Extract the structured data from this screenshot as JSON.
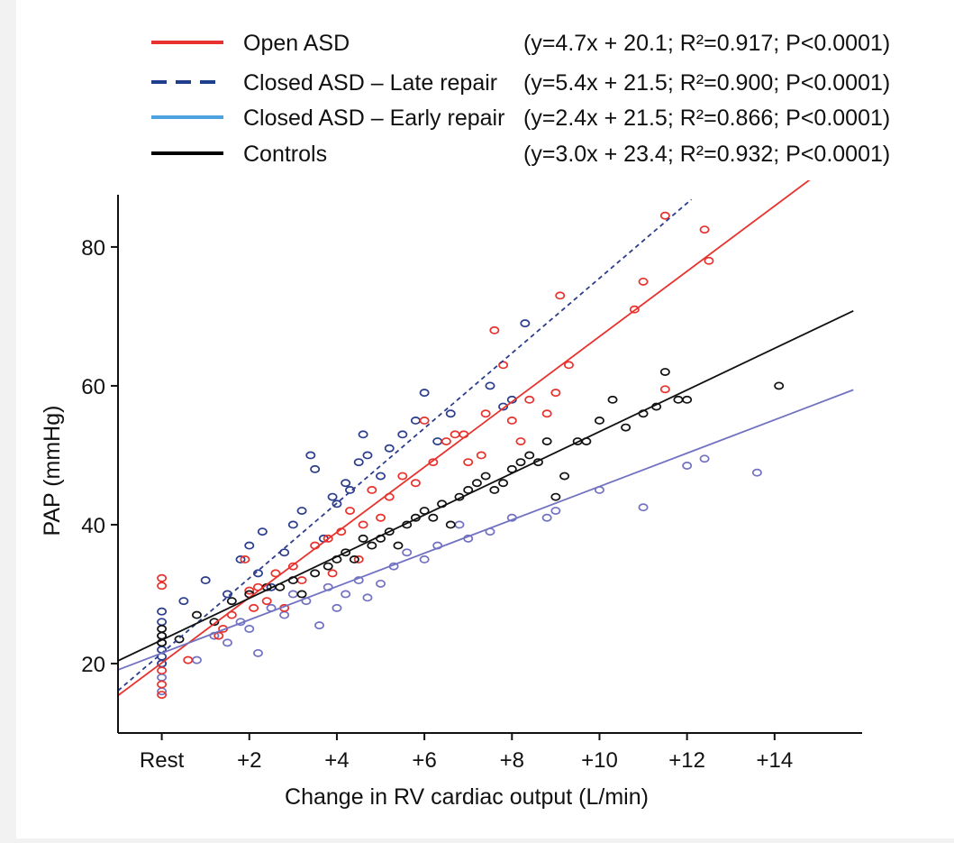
{
  "chart_data": {
    "type": "scatter",
    "legend_placement": "top",
    "xlabel": "Change in RV cardiac output (L/min)",
    "ylabel": "PAP (mmHg)",
    "xlim": [
      -1,
      16
    ],
    "ylim": [
      10,
      87
    ],
    "x_ticks": [
      {
        "value": 0,
        "label": "Rest"
      },
      {
        "value": 2,
        "label": "+2"
      },
      {
        "value": 4,
        "label": "+4"
      },
      {
        "value": 6,
        "label": "+6"
      },
      {
        "value": 8,
        "label": "+8"
      },
      {
        "value": 10,
        "label": "+10"
      },
      {
        "value": 12,
        "label": "+12"
      },
      {
        "value": 14,
        "label": "+14"
      }
    ],
    "y_ticks": [
      {
        "value": 20,
        "label": "20"
      },
      {
        "value": 40,
        "label": "40"
      },
      {
        "value": 60,
        "label": "60"
      },
      {
        "value": 80,
        "label": "80"
      }
    ],
    "grid": false,
    "series": [
      {
        "name": "Open ASD",
        "equation": "(y=4.7x + 20.1; R²=0.917; P<0.0001)",
        "color": "#e8322d",
        "line_style": "solid",
        "slope": 4.7,
        "intercept": 20.1,
        "line_x": [
          -1,
          15.2
        ],
        "points": [
          [
            0,
            32.3
          ],
          [
            0,
            31.2
          ],
          [
            0,
            19
          ],
          [
            0,
            17
          ],
          [
            0,
            15.5
          ],
          [
            0.6,
            20.5
          ],
          [
            1.3,
            24
          ],
          [
            1.4,
            25
          ],
          [
            1.6,
            27
          ],
          [
            1.9,
            35
          ],
          [
            2,
            30.5
          ],
          [
            2.1,
            28
          ],
          [
            2.2,
            31
          ],
          [
            2.4,
            29
          ],
          [
            2.6,
            33
          ],
          [
            2.8,
            28
          ],
          [
            3,
            34
          ],
          [
            3.2,
            32
          ],
          [
            3.5,
            37
          ],
          [
            3.8,
            38
          ],
          [
            3.9,
            33
          ],
          [
            4.1,
            39
          ],
          [
            4.3,
            42
          ],
          [
            4.5,
            35
          ],
          [
            4.6,
            40
          ],
          [
            4.8,
            45
          ],
          [
            5,
            41
          ],
          [
            5.2,
            44
          ],
          [
            5.5,
            47
          ],
          [
            5.8,
            46
          ],
          [
            6,
            55
          ],
          [
            6.2,
            49
          ],
          [
            6.5,
            52
          ],
          [
            6.7,
            53
          ],
          [
            6.9,
            53
          ],
          [
            7,
            49
          ],
          [
            7.3,
            50
          ],
          [
            7.4,
            56
          ],
          [
            7.6,
            68
          ],
          [
            7.8,
            63
          ],
          [
            8,
            55
          ],
          [
            8.2,
            52
          ],
          [
            8.4,
            58
          ],
          [
            8.8,
            56
          ],
          [
            9,
            59
          ],
          [
            9.3,
            63
          ],
          [
            9.1,
            73
          ],
          [
            10.8,
            71
          ],
          [
            11,
            75
          ],
          [
            11.5,
            84.5
          ],
          [
            11.5,
            59.5
          ],
          [
            12.4,
            82.5
          ],
          [
            12.5,
            78
          ]
        ]
      },
      {
        "name": "Closed ASD – Late repair",
        "equation": "(y=5.4x + 21.5; R²=0.900; P<0.0001)",
        "color": "#2b3d8c",
        "line_style": "dashed",
        "slope": 5.4,
        "intercept": 21.5,
        "line_x": [
          -1,
          12.1
        ],
        "points": [
          [
            0,
            27.5
          ],
          [
            0,
            26
          ],
          [
            0,
            24
          ],
          [
            0,
            23
          ],
          [
            0,
            22
          ],
          [
            0,
            21
          ],
          [
            0,
            20
          ],
          [
            0.5,
            29
          ],
          [
            1,
            32
          ],
          [
            1.5,
            30
          ],
          [
            1.8,
            35
          ],
          [
            2,
            37
          ],
          [
            2.2,
            33
          ],
          [
            2.3,
            39
          ],
          [
            2.5,
            31
          ],
          [
            2.8,
            36
          ],
          [
            3,
            40
          ],
          [
            3.2,
            42
          ],
          [
            3.4,
            50
          ],
          [
            3.5,
            48
          ],
          [
            3.7,
            38
          ],
          [
            3.9,
            44
          ],
          [
            4,
            43
          ],
          [
            4.2,
            46
          ],
          [
            4.3,
            45
          ],
          [
            4.5,
            49
          ],
          [
            4.6,
            53
          ],
          [
            4.7,
            50
          ],
          [
            5,
            47
          ],
          [
            5.2,
            51
          ],
          [
            5.5,
            53
          ],
          [
            5.8,
            55
          ],
          [
            6,
            59
          ],
          [
            6.3,
            52
          ],
          [
            6.6,
            56
          ],
          [
            7.5,
            60
          ],
          [
            7.8,
            57
          ],
          [
            8,
            58
          ],
          [
            8.3,
            69
          ]
        ]
      },
      {
        "name": "Closed ASD – Early repair",
        "equation": "(y=2.4x + 21.5; R²=0.866; P<0.0001)",
        "color": "#7272c2",
        "line_style": "solid",
        "slope": 2.4,
        "intercept": 21.5,
        "line_x": [
          -1,
          15.8
        ],
        "points": [
          [
            0,
            22
          ],
          [
            0,
            20
          ],
          [
            0,
            18
          ],
          [
            0,
            16
          ],
          [
            0.8,
            20.5
          ],
          [
            1.2,
            24
          ],
          [
            1.5,
            23
          ],
          [
            1.8,
            26
          ],
          [
            2,
            25
          ],
          [
            2.2,
            21.5
          ],
          [
            2.5,
            28
          ],
          [
            2.8,
            27
          ],
          [
            3,
            30
          ],
          [
            3.3,
            29
          ],
          [
            3.6,
            25.5
          ],
          [
            3.8,
            31
          ],
          [
            4,
            28
          ],
          [
            4.2,
            30
          ],
          [
            4.5,
            32
          ],
          [
            4.7,
            29.5
          ],
          [
            5,
            31.5
          ],
          [
            5.3,
            34
          ],
          [
            5.6,
            36
          ],
          [
            6,
            35
          ],
          [
            6.3,
            37
          ],
          [
            6.8,
            40
          ],
          [
            7,
            38
          ],
          [
            7.5,
            39
          ],
          [
            8,
            41
          ],
          [
            8.8,
            41
          ],
          [
            9,
            42
          ],
          [
            10,
            45
          ],
          [
            11,
            42.5
          ],
          [
            12,
            48.5
          ],
          [
            12.4,
            49.5
          ],
          [
            13.6,
            47.5
          ]
        ]
      },
      {
        "name": "Controls",
        "equation": "(y=3.0x + 23.4; R²=0.932; P<0.0001)",
        "color": "#111111",
        "line_style": "solid",
        "slope": 3.0,
        "intercept": 23.4,
        "line_x": [
          -1,
          15.8
        ],
        "points": [
          [
            0,
            25
          ],
          [
            0,
            24
          ],
          [
            0,
            23
          ],
          [
            0.4,
            23.5
          ],
          [
            0.8,
            27
          ],
          [
            1.2,
            26
          ],
          [
            1.6,
            29
          ],
          [
            2,
            30
          ],
          [
            2.4,
            31
          ],
          [
            2.7,
            31
          ],
          [
            3,
            32
          ],
          [
            3.2,
            30
          ],
          [
            3.5,
            33
          ],
          [
            3.8,
            34
          ],
          [
            4,
            35
          ],
          [
            4.2,
            36
          ],
          [
            4.4,
            35
          ],
          [
            4.6,
            38
          ],
          [
            4.8,
            37
          ],
          [
            5,
            38
          ],
          [
            5.2,
            39
          ],
          [
            5.4,
            37
          ],
          [
            5.6,
            40
          ],
          [
            5.8,
            41
          ],
          [
            6,
            42
          ],
          [
            6.2,
            41
          ],
          [
            6.4,
            43
          ],
          [
            6.6,
            40
          ],
          [
            6.8,
            44
          ],
          [
            7,
            45
          ],
          [
            7.2,
            46
          ],
          [
            7.4,
            47
          ],
          [
            7.6,
            45
          ],
          [
            7.8,
            46
          ],
          [
            8,
            48
          ],
          [
            8.2,
            49
          ],
          [
            8.4,
            50
          ],
          [
            8.6,
            49
          ],
          [
            8.8,
            52
          ],
          [
            9,
            44
          ],
          [
            9.2,
            47
          ],
          [
            9.5,
            52
          ],
          [
            9.7,
            52
          ],
          [
            10,
            55
          ],
          [
            10.3,
            58
          ],
          [
            10.6,
            54
          ],
          [
            11,
            56
          ],
          [
            11.3,
            57
          ],
          [
            11.5,
            62
          ],
          [
            11.8,
            58
          ],
          [
            12,
            58
          ],
          [
            14.1,
            60
          ]
        ]
      }
    ]
  }
}
